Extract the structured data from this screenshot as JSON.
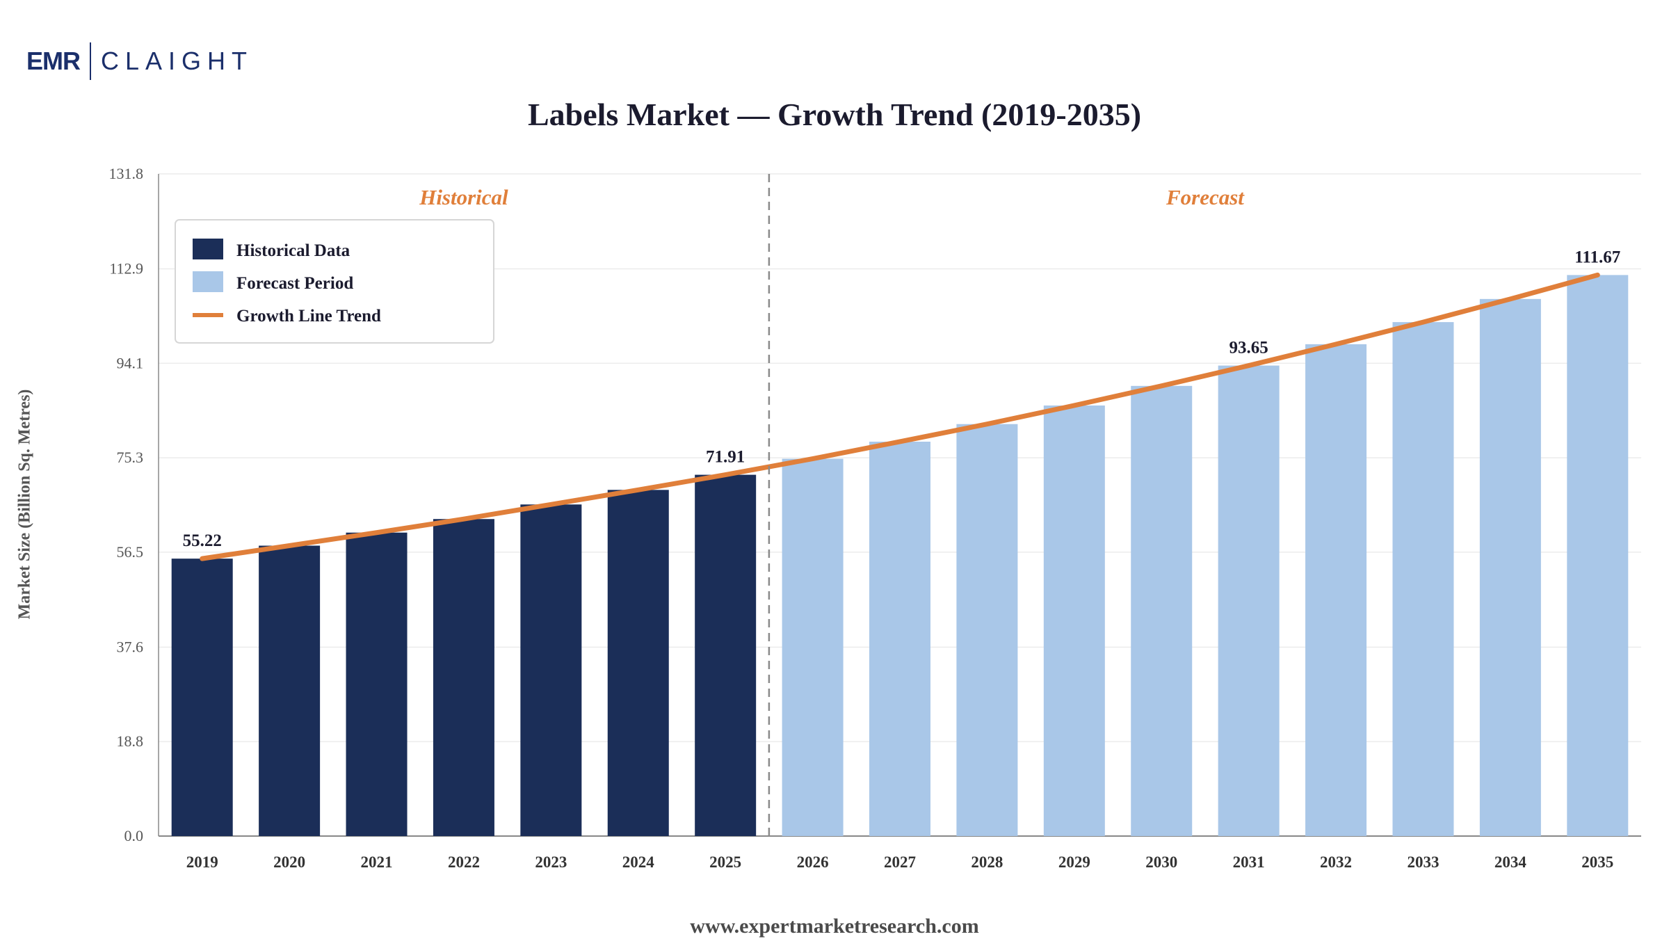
{
  "logo": {
    "left": "EMR",
    "right": "CLAIGHT"
  },
  "title": "Labels Market — Growth Trend (2019-2035)",
  "footer": "www.expertmarketresearch.com",
  "colors": {
    "historical": "#1b2e58",
    "forecast": "#a9c7e8",
    "trend": "#e07f3a",
    "period_label": "#e07f3a"
  },
  "chart_data": {
    "type": "bar",
    "title": "Labels Market — Growth Trend (2019-2035)",
    "ylabel": "Market Size (Billion Sq. Metres)",
    "xlabel": "",
    "ylim": [
      0,
      131.8
    ],
    "yticks": [
      "0.0",
      "18.8",
      "37.6",
      "56.5",
      "75.3",
      "94.1",
      "112.9",
      "131.8"
    ],
    "categories": [
      "2019",
      "2020",
      "2021",
      "2022",
      "2023",
      "2024",
      "2025",
      "2026",
      "2027",
      "2028",
      "2029",
      "2030",
      "2031",
      "2032",
      "2033",
      "2034",
      "2035"
    ],
    "series": [
      {
        "name": "Historical Data",
        "values": [
          55.22,
          57.8,
          60.4,
          63.1,
          66.0,
          68.9,
          71.91,
          null,
          null,
          null,
          null,
          null,
          null,
          null,
          null,
          null,
          null
        ]
      },
      {
        "name": "Forecast Period",
        "values": [
          null,
          null,
          null,
          null,
          null,
          null,
          null,
          75.1,
          78.5,
          82.0,
          85.7,
          89.6,
          93.65,
          97.9,
          102.3,
          106.9,
          111.67
        ]
      },
      {
        "name": "Growth Line Trend",
        "type": "line",
        "values": [
          55.22,
          57.8,
          60.4,
          63.1,
          66.0,
          68.9,
          71.91,
          75.1,
          78.5,
          82.0,
          85.7,
          89.6,
          93.65,
          97.9,
          102.3,
          106.9,
          111.67
        ]
      }
    ],
    "data_labels": [
      {
        "category": "2019",
        "text": "55.22"
      },
      {
        "category": "2025",
        "text": "71.91"
      },
      {
        "category": "2031",
        "text": "93.65"
      },
      {
        "category": "2035",
        "text": "111.67"
      }
    ],
    "periods": {
      "historical": "Historical",
      "forecast": "Forecast",
      "split_after": "2025"
    },
    "legend": {
      "placement": "top-left",
      "items": [
        "Historical Data",
        "Forecast Period",
        "Growth Line Trend"
      ]
    },
    "grid": true
  }
}
